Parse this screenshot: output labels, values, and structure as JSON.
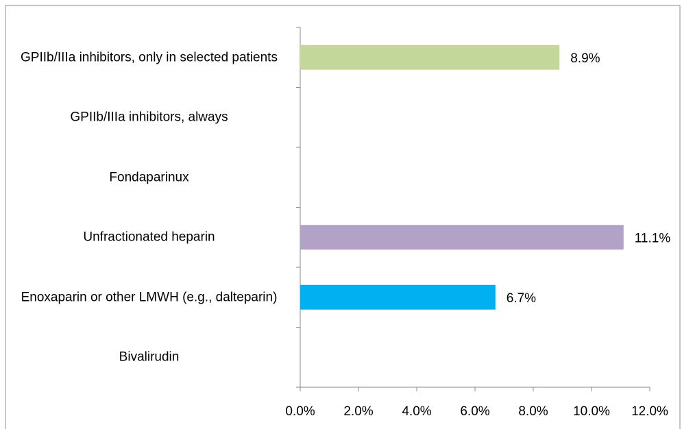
{
  "chart_data": {
    "type": "bar",
    "orientation": "horizontal",
    "categories": [
      "GPIIb/IIIa inhibitors, only in selected patients",
      "GPIIb/IIIa inhibitors, always",
      "Fondaparinux",
      "Unfractionated heparin",
      "Enoxaparin or other LMWH (e.g., dalteparin)",
      "Bivalirudin"
    ],
    "values": [
      8.9,
      null,
      null,
      11.1,
      6.7,
      null
    ],
    "value_labels": [
      "8.9%",
      null,
      null,
      "11.1%",
      "6.7%",
      null
    ],
    "colors": [
      "#c4d79b",
      null,
      null,
      "#b3a2c7",
      "#00b0f0",
      null
    ],
    "xlim": [
      0,
      12
    ],
    "xticks": [
      {
        "value": 0,
        "label": "0.0%"
      },
      {
        "value": 2,
        "label": "2.0%"
      },
      {
        "value": 4,
        "label": "4.0%"
      },
      {
        "value": 6,
        "label": "6.0%"
      },
      {
        "value": 8,
        "label": "8.0%"
      },
      {
        "value": 10,
        "label": "10.0%"
      },
      {
        "value": 12,
        "label": "12.0%"
      }
    ],
    "grid": false
  }
}
